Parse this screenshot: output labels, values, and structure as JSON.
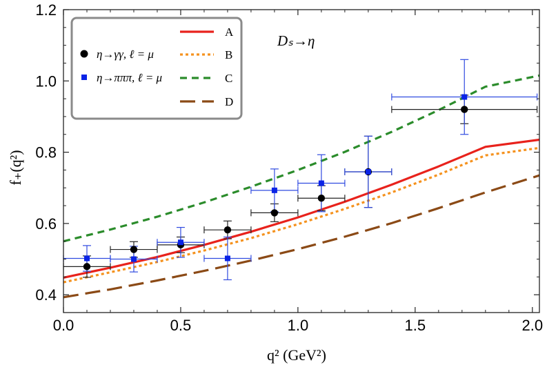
{
  "chart_data": {
    "type": "line",
    "xlabel": "q² (GeV²)",
    "ylabel": "f₊(q²)",
    "xlim": [
      0.0,
      2.03
    ],
    "ylim": [
      0.35,
      1.2
    ],
    "x_ticks": [
      "0.0",
      "0.5",
      "1.0",
      "1.5",
      "2.0"
    ],
    "y_ticks": [
      "0.4",
      "0.6",
      "0.8",
      "1.0",
      "1.2"
    ],
    "annotation": "Dₛ→η",
    "grid": false,
    "legend_position": "top-left",
    "series": [
      {
        "name": "A",
        "color": "#e8221c",
        "style": "solid",
        "x": [
          0.0,
          0.2,
          0.4,
          0.6,
          0.8,
          1.0,
          1.2,
          1.4,
          1.6,
          1.8,
          2.03
        ],
        "y": [
          0.448,
          0.476,
          0.506,
          0.54,
          0.577,
          0.617,
          0.661,
          0.709,
          0.76,
          0.815,
          0.835
        ]
      },
      {
        "name": "B",
        "color": "#f5921e",
        "style": "dotted",
        "x": [
          0.0,
          0.2,
          0.4,
          0.6,
          0.8,
          1.0,
          1.2,
          1.4,
          1.6,
          1.8,
          2.03
        ],
        "y": [
          0.435,
          0.463,
          0.492,
          0.524,
          0.559,
          0.598,
          0.641,
          0.687,
          0.737,
          0.791,
          0.812
        ]
      },
      {
        "name": "C",
        "color": "#2b8c2b",
        "style": "dashed",
        "x": [
          0.0,
          0.2,
          0.4,
          0.6,
          0.8,
          1.0,
          1.2,
          1.4,
          1.6,
          1.8,
          2.03
        ],
        "y": [
          0.55,
          0.583,
          0.619,
          0.659,
          0.703,
          0.75,
          0.801,
          0.857,
          0.918,
          0.984,
          1.015
        ]
      },
      {
        "name": "D",
        "color": "#8b4a16",
        "style": "longdash",
        "x": [
          0.0,
          0.2,
          0.4,
          0.6,
          0.8,
          1.0,
          1.2,
          1.4,
          1.6,
          1.8,
          2.03
        ],
        "y": [
          0.393,
          0.415,
          0.44,
          0.467,
          0.496,
          0.528,
          0.563,
          0.601,
          0.643,
          0.687,
          0.735
        ]
      }
    ],
    "points": [
      {
        "name": "η→γγ, ℓ = μ",
        "marker": "circle",
        "color": "#000000",
        "errcolor": "#222222",
        "data": [
          {
            "x": 0.1,
            "y": 0.479,
            "xerr": 0.1,
            "yerr": 0.03
          },
          {
            "x": 0.3,
            "y": 0.527,
            "xerr": 0.1,
            "yerr": 0.022
          },
          {
            "x": 0.5,
            "y": 0.54,
            "xerr": 0.1,
            "yerr": 0.022
          },
          {
            "x": 0.7,
            "y": 0.582,
            "xerr": 0.1,
            "yerr": 0.025
          },
          {
            "x": 0.9,
            "y": 0.63,
            "xerr": 0.1,
            "yerr": 0.025
          },
          {
            "x": 1.1,
            "y": 0.671,
            "xerr": 0.1,
            "yerr": 0.035
          },
          {
            "x": 1.3,
            "y": 0.745,
            "xerr": 0.1,
            "yerr": 0.1
          },
          {
            "x": 1.71,
            "y": 0.92,
            "xerr": 0.31,
            "yerr": 0.04
          }
        ]
      },
      {
        "name": "η→πππ, ℓ = μ",
        "marker": "square",
        "color": "#0a23e6",
        "errcolor": "#2f4ae0",
        "data": [
          {
            "x": 0.1,
            "y": 0.502,
            "xerr": 0.1,
            "yerr": 0.036
          },
          {
            "x": 0.3,
            "y": 0.5,
            "xerr": 0.1,
            "yerr": 0.036
          },
          {
            "x": 0.5,
            "y": 0.547,
            "xerr": 0.1,
            "yerr": 0.042
          },
          {
            "x": 0.7,
            "y": 0.502,
            "xerr": 0.1,
            "yerr": 0.06
          },
          {
            "x": 0.9,
            "y": 0.693,
            "xerr": 0.1,
            "yerr": 0.06
          },
          {
            "x": 1.1,
            "y": 0.713,
            "xerr": 0.1,
            "yerr": 0.08
          },
          {
            "x": 1.3,
            "y": 0.745,
            "xerr": 0.1,
            "yerr": 0.1
          },
          {
            "x": 1.71,
            "y": 0.955,
            "xerr": 0.31,
            "yerr": 0.105
          }
        ]
      }
    ]
  }
}
